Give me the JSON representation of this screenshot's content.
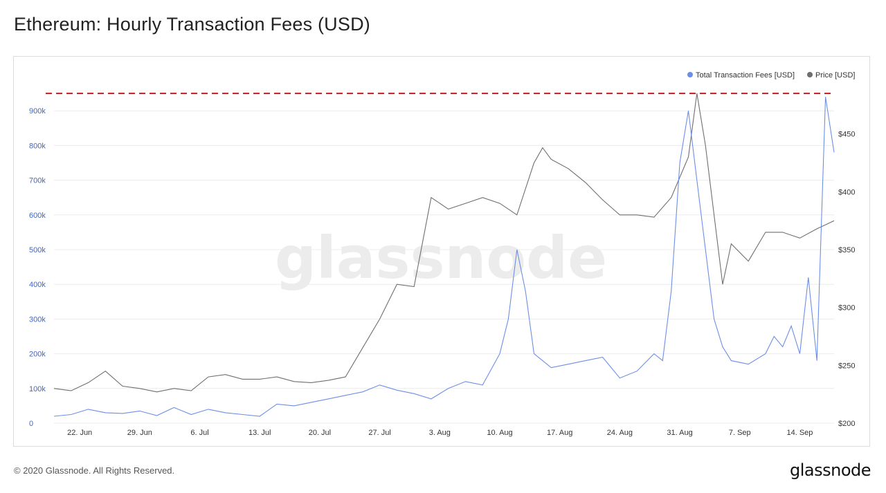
{
  "page": {
    "title": "Ethereum: Hourly Transaction Fees (USD)",
    "copyright": "© 2020 Glassnode. All Rights Reserved.",
    "brand": "glassnode",
    "watermark": "glassnode"
  },
  "colors": {
    "fees": "#6b8ee6",
    "price": "#6e6e6e",
    "left_axis_text": "#3f66c4",
    "right_axis_text": "#333333",
    "ath_line": "#c81a1a",
    "grid": "#ececec"
  },
  "chart_data": {
    "type": "line",
    "title": "Ethereum: Hourly Transaction Fees (USD)",
    "x_ticks": [
      "22. Jun",
      "29. Jun",
      "6. Jul",
      "13. Jul",
      "20. Jul",
      "27. Jul",
      "3. Aug",
      "10. Aug",
      "17. Aug",
      "24. Aug",
      "31. Aug",
      "7. Sep",
      "14. Sep"
    ],
    "y_left": {
      "ticks": [
        "0",
        "100k",
        "200k",
        "300k",
        "400k",
        "500k",
        "600k",
        "700k",
        "800k",
        "900k"
      ],
      "range": [
        0,
        1000000
      ]
    },
    "y_right": {
      "ticks": [
        "$200",
        "$250",
        "$300",
        "$350",
        "$400",
        "$450"
      ],
      "range": [
        200,
        500
      ]
    },
    "legend": {
      "position": "top-right"
    },
    "reference_line": {
      "value": 950000,
      "style": "dashed"
    },
    "series": [
      {
        "name": "Total Transaction Fees [USD]",
        "axis": "left",
        "x": [
          "19. Jun",
          "21. Jun",
          "23. Jun",
          "25. Jun",
          "27. Jun",
          "29. Jun",
          "1. Jul",
          "3. Jul",
          "5. Jul",
          "7. Jul",
          "9. Jul",
          "11. Jul",
          "13. Jul",
          "15. Jul",
          "17. Jul",
          "19. Jul",
          "21. Jul",
          "23. Jul",
          "25. Jul",
          "27. Jul",
          "29. Jul",
          "31. Jul",
          "2. Aug",
          "4. Aug",
          "6. Aug",
          "8. Aug",
          "10. Aug",
          "11. Aug",
          "12. Aug",
          "13. Aug",
          "14. Aug",
          "15. Aug",
          "16. Aug",
          "18. Aug",
          "20. Aug",
          "22. Aug",
          "24. Aug",
          "26. Aug",
          "28. Aug",
          "29. Aug",
          "30. Aug",
          "31. Aug",
          "1. Sep",
          "2. Sep",
          "3. Sep",
          "4. Sep",
          "5. Sep",
          "6. Sep",
          "8. Sep",
          "10. Sep",
          "11. Sep",
          "12. Sep",
          "13. Sep",
          "14. Sep",
          "15. Sep",
          "16. Sep",
          "17. Sep",
          "18. Sep"
        ],
        "values": [
          20000,
          25000,
          40000,
          30000,
          28000,
          35000,
          22000,
          45000,
          25000,
          40000,
          30000,
          25000,
          20000,
          55000,
          50000,
          60000,
          70000,
          80000,
          90000,
          110000,
          95000,
          85000,
          70000,
          100000,
          120000,
          110000,
          200000,
          300000,
          500000,
          380000,
          200000,
          180000,
          160000,
          170000,
          180000,
          190000,
          130000,
          150000,
          200000,
          180000,
          380000,
          750000,
          900000,
          700000,
          500000,
          300000,
          220000,
          180000,
          170000,
          200000,
          250000,
          220000,
          280000,
          200000,
          420000,
          180000,
          940000,
          780000
        ]
      },
      {
        "name": "Price [USD]",
        "axis": "right",
        "x": [
          "19. Jun",
          "21. Jun",
          "23. Jun",
          "25. Jun",
          "27. Jun",
          "29. Jun",
          "1. Jul",
          "3. Jul",
          "5. Jul",
          "7. Jul",
          "9. Jul",
          "11. Jul",
          "13. Jul",
          "15. Jul",
          "17. Jul",
          "19. Jul",
          "21. Jul",
          "23. Jul",
          "25. Jul",
          "27. Jul",
          "29. Jul",
          "31. Jul",
          "2. Aug",
          "4. Aug",
          "6. Aug",
          "8. Aug",
          "10. Aug",
          "12. Aug",
          "14. Aug",
          "15. Aug",
          "16. Aug",
          "18. Aug",
          "20. Aug",
          "22. Aug",
          "24. Aug",
          "26. Aug",
          "28. Aug",
          "30. Aug",
          "1. Sep",
          "2. Sep",
          "3. Sep",
          "4. Sep",
          "5. Sep",
          "6. Sep",
          "8. Sep",
          "10. Sep",
          "12. Sep",
          "14. Sep",
          "16. Sep",
          "18. Sep"
        ],
        "values": [
          230,
          228,
          235,
          245,
          232,
          230,
          227,
          230,
          228,
          240,
          242,
          238,
          238,
          240,
          236,
          235,
          237,
          240,
          265,
          290,
          320,
          318,
          395,
          385,
          390,
          395,
          390,
          380,
          425,
          438,
          428,
          420,
          408,
          393,
          380,
          380,
          378,
          395,
          430,
          485,
          440,
          380,
          320,
          355,
          340,
          365,
          365,
          360,
          368,
          375
        ]
      }
    ]
  }
}
